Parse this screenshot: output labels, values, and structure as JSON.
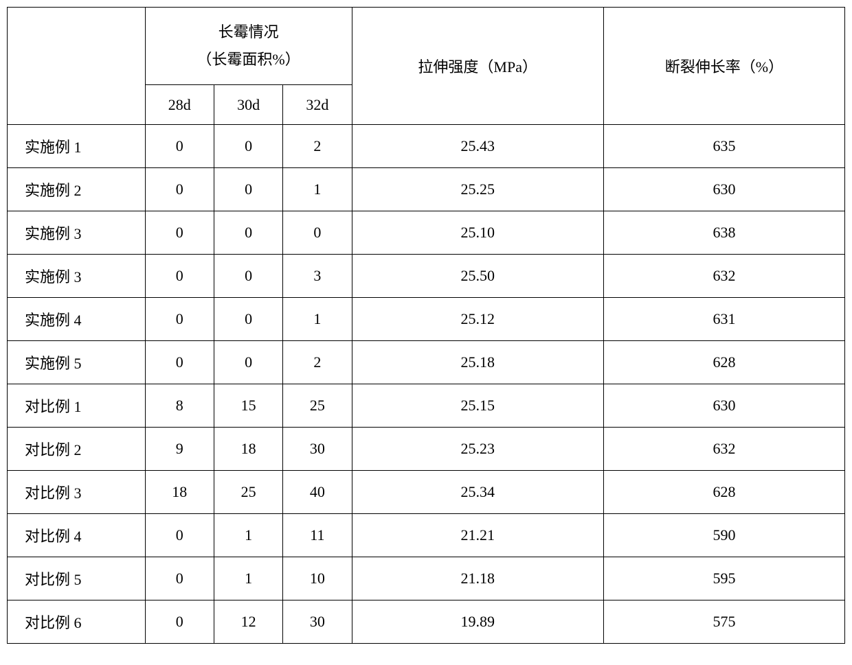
{
  "table": {
    "type": "table",
    "background_color": "#ffffff",
    "border_color": "#000000",
    "text_color": "#000000",
    "font_family": "SimSun",
    "header_fontsize": 22,
    "cell_fontsize": 22,
    "columns": {
      "row_label": "",
      "mold_condition_title": "长霉情况",
      "mold_condition_subtitle": "（长霉面积%）",
      "mold_28d": "28d",
      "mold_30d": "30d",
      "mold_32d": "32d",
      "tensile_strength": "拉伸强度（MPa）",
      "elongation_at_break": "断裂伸长率（%）"
    },
    "column_widths": {
      "row_label": 180,
      "mold_sub": 100,
      "tensile": 375,
      "elongation": 360
    },
    "rows": [
      {
        "label": "实施例 1",
        "d28": "0",
        "d30": "0",
        "d32": "2",
        "tensile": "25.43",
        "elongation": "635"
      },
      {
        "label": "实施例 2",
        "d28": "0",
        "d30": "0",
        "d32": "1",
        "tensile": "25.25",
        "elongation": "630"
      },
      {
        "label": "实施例 3",
        "d28": "0",
        "d30": "0",
        "d32": "0",
        "tensile": "25.10",
        "elongation": "638"
      },
      {
        "label": "实施例 3",
        "d28": "0",
        "d30": "0",
        "d32": "3",
        "tensile": "25.50",
        "elongation": "632"
      },
      {
        "label": "实施例 4",
        "d28": "0",
        "d30": "0",
        "d32": "1",
        "tensile": "25.12",
        "elongation": "631"
      },
      {
        "label": "实施例 5",
        "d28": "0",
        "d30": "0",
        "d32": "2",
        "tensile": "25.18",
        "elongation": "628"
      },
      {
        "label": "对比例 1",
        "d28": "8",
        "d30": "15",
        "d32": "25",
        "tensile": "25.15",
        "elongation": "630"
      },
      {
        "label": "对比例 2",
        "d28": "9",
        "d30": "18",
        "d32": "30",
        "tensile": "25.23",
        "elongation": "632"
      },
      {
        "label": "对比例 3",
        "d28": "18",
        "d30": "25",
        "d32": "40",
        "tensile": "25.34",
        "elongation": "628"
      },
      {
        "label": "对比例 4",
        "d28": "0",
        "d30": "1",
        "d32": "11",
        "tensile": "21.21",
        "elongation": "590"
      },
      {
        "label": "对比例 5",
        "d28": "0",
        "d30": "1",
        "d32": "10",
        "tensile": "21.18",
        "elongation": "595"
      },
      {
        "label": "对比例 6",
        "d28": "0",
        "d30": "12",
        "d32": "30",
        "tensile": "19.89",
        "elongation": "575"
      }
    ]
  }
}
